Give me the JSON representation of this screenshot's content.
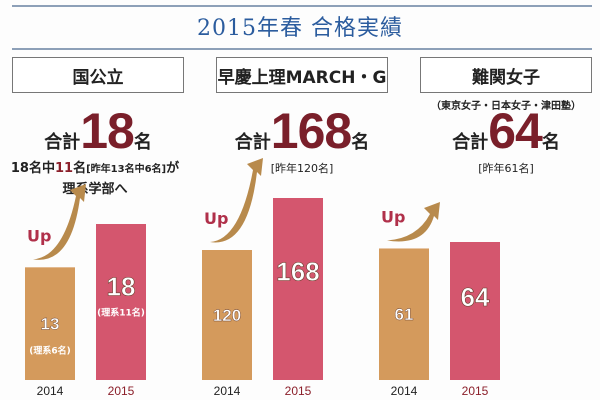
{
  "title": "2015年春 合格実績",
  "colors": {
    "bar_2014": "#d49a5c",
    "bar_2015": "#d4566e",
    "arrow": "#b88a4c",
    "up_text": "#b0304a",
    "num": "#7a1f2a",
    "title": "#2b5c9e"
  },
  "chart_data": [
    {
      "type": "bar",
      "title": "国公立",
      "categories": [
        "2014",
        "2015"
      ],
      "values": [
        13,
        18
      ],
      "bar_labels": [
        "13",
        "18"
      ],
      "bar_sublabels": [
        "(理系6名)",
        "(理系11名)"
      ],
      "total_prefix": "合計",
      "total": "18",
      "total_suffix": "名",
      "note": {
        "part1": "18名中",
        "highlight": "11",
        "part2": "名",
        "bracket": "[昨年13名中6名]",
        "part3": "が",
        "line2": "理系学部へ"
      },
      "arrow_label": "Up"
    },
    {
      "type": "bar",
      "title": "早慶上理MARCH・G",
      "categories": [
        "2014",
        "2015"
      ],
      "values": [
        120,
        168
      ],
      "bar_labels": [
        "120",
        "168"
      ],
      "total_prefix": "合計",
      "total": "168",
      "total_suffix": "名",
      "previous": "[昨年120名]",
      "arrow_label": "Up"
    },
    {
      "type": "bar",
      "title": "難関女子",
      "subtitle": "（東京女子・日本女子・津田塾）",
      "categories": [
        "2014",
        "2015"
      ],
      "values": [
        61,
        64
      ],
      "bar_labels": [
        "61",
        "64"
      ],
      "total_prefix": "合計",
      "total": "64",
      "total_suffix": "名",
      "previous": "[昨年61名]",
      "arrow_label": "Up"
    }
  ]
}
